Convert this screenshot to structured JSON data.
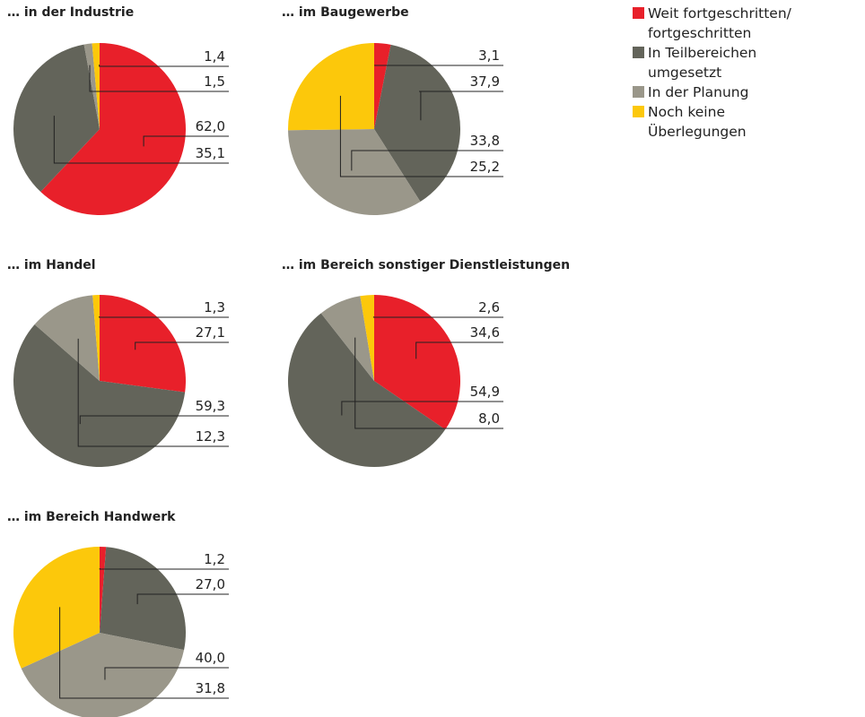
{
  "legend": {
    "labels": [
      "Weit fortgeschritten/ fortgeschritten",
      "In Teilbereichen umgesetzt",
      "In der Planung",
      "Noch keine Überlegungen"
    ],
    "colors": [
      "#e8202a",
      "#63645a",
      "#9a978a",
      "#fcc80b"
    ]
  },
  "chart_data": [
    {
      "type": "pie",
      "title": "… in der Industrie",
      "values": [
        62.0,
        35.1,
        1.5,
        1.4
      ],
      "value_labels": [
        "62,0",
        "35,1",
        "1,5",
        "1,4"
      ]
    },
    {
      "type": "pie",
      "title": "… im Baugewerbe",
      "values": [
        3.1,
        37.9,
        33.8,
        25.2
      ],
      "value_labels": [
        "3,1",
        "37,9",
        "33,8",
        "25,2"
      ]
    },
    {
      "type": "pie",
      "title": "… im Handel",
      "values": [
        27.1,
        59.3,
        12.3,
        1.3
      ],
      "value_labels": [
        "27,1",
        "59,3",
        "12,3",
        "1,3"
      ]
    },
    {
      "type": "pie",
      "title": "… im Bereich sonstiger Dienstleistungen",
      "values": [
        34.6,
        54.9,
        8.0,
        2.6
      ],
      "value_labels": [
        "34,6",
        "54,9",
        "8,0",
        "2,6"
      ]
    },
    {
      "type": "pie",
      "title": "… im Bereich Handwerk",
      "values": [
        1.2,
        27.0,
        40.0,
        31.8
      ],
      "value_labels": [
        "1,2",
        "27,0",
        "40,0",
        "31,8"
      ]
    }
  ]
}
